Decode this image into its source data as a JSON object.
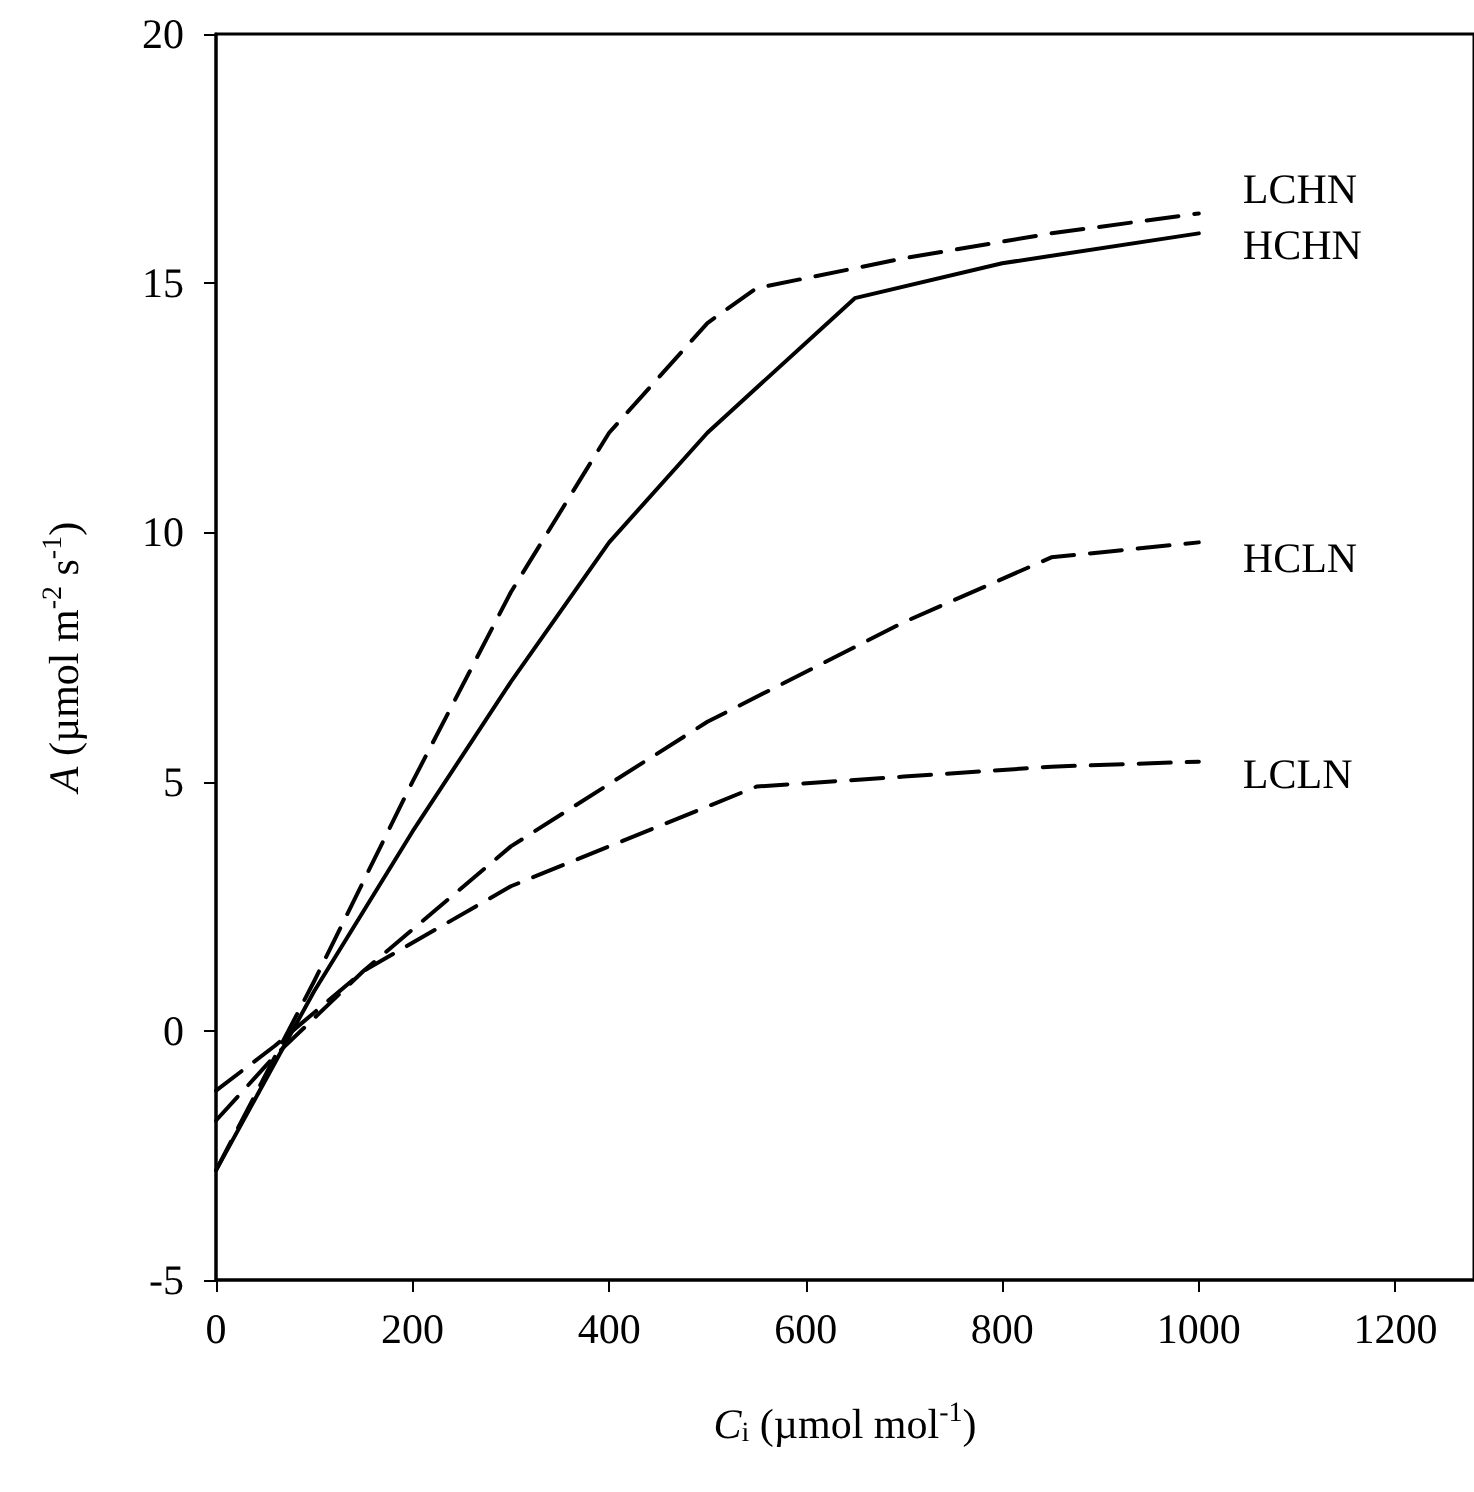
{
  "chart_data": {
    "type": "line",
    "xlabel": "C$_{i}$ (µmol mol$^{-1}$)",
    "ylabel": "A (µmol m$^{-2}$ s$^{-1}$)",
    "xlim": [
      0,
      1280
    ],
    "xticks": [
      0,
      200,
      400,
      600,
      800,
      1000,
      1200
    ],
    "ylim": [
      -5,
      20
    ],
    "yticks": [
      -5,
      0,
      5,
      10,
      15,
      20
    ],
    "grid": false,
    "legend": false,
    "marker": "none",
    "series": [
      {
        "name": "LCHN",
        "color": "#000000",
        "line_style": "dashed",
        "x": [
          0,
          100,
          200,
          300,
          400,
          500,
          550,
          700,
          850,
          1000
        ],
        "values": [
          -2.8,
          1,
          5,
          8.8,
          12,
          14.2,
          14.9,
          15.5,
          16,
          16.4
        ]
      },
      {
        "name": "HCHN",
        "color": "#000000",
        "line_style": "solid",
        "x": [
          0,
          100,
          200,
          300,
          400,
          500,
          650,
          800,
          1000
        ],
        "values": [
          -2.8,
          0.8,
          4,
          7,
          9.8,
          12,
          14.7,
          15.4,
          16
        ]
      },
      {
        "name": "HCLN",
        "color": "#000000",
        "line_style": "dashed",
        "x": [
          0,
          60,
          150,
          300,
          500,
          700,
          850,
          1000
        ],
        "values": [
          -1.8,
          -0.5,
          1.2,
          3.7,
          6.2,
          8.2,
          9.5,
          9.8
        ]
      },
      {
        "name": "LCLN",
        "color": "#000000",
        "line_style": "dashed",
        "x": [
          0,
          60,
          150,
          300,
          450,
          550,
          700,
          850,
          1000
        ],
        "values": [
          -1.2,
          -0.3,
          1.2,
          2.9,
          4.1,
          4.9,
          5.1,
          5.3,
          5.4
        ]
      }
    ]
  }
}
